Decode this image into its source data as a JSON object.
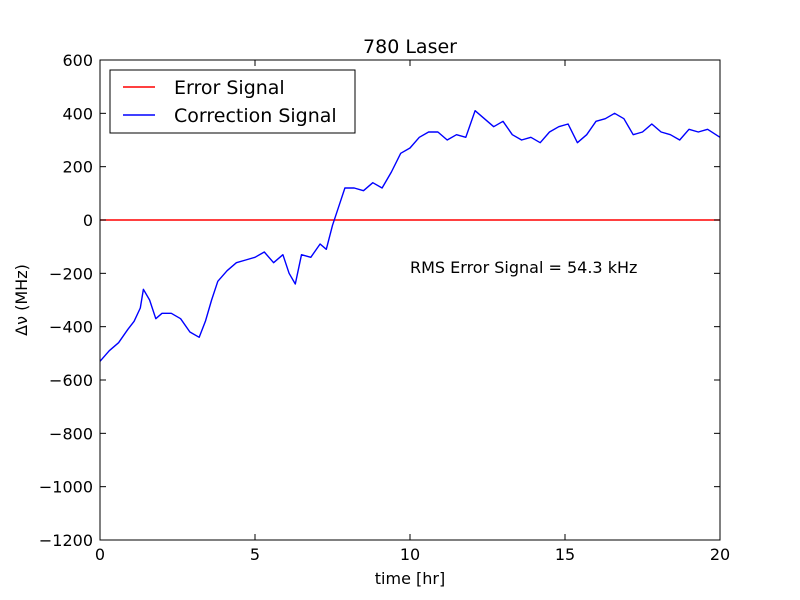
{
  "chart_data": {
    "type": "line",
    "title": "780 Laser",
    "xlabel": "time [hr]",
    "ylabel": "Δν (MHz)",
    "xlim": [
      0,
      20
    ],
    "ylim": [
      -1200,
      600
    ],
    "xticks": [
      0,
      5,
      10,
      15,
      20
    ],
    "xtick_labels": [
      "0",
      "5",
      "10",
      "15",
      "20"
    ],
    "yticks": [
      600,
      400,
      200,
      0,
      -200,
      -400,
      -600,
      -800,
      -1000,
      -1200
    ],
    "ytick_labels": [
      "600",
      "400",
      "200",
      "0",
      "−200",
      "−400",
      "−600",
      "−800",
      "−1000",
      "−1200"
    ],
    "grid": false,
    "legend": "top-left",
    "annotation": "RMS Error Signal = 54.3 kHz",
    "series": [
      {
        "name": "Error Signal",
        "color": "#ff0000",
        "x": [
          0,
          20
        ],
        "y": [
          0,
          0
        ]
      },
      {
        "name": "Correction Signal",
        "color": "#0000ff",
        "x": [
          0,
          0.3,
          0.6,
          0.9,
          1.1,
          1.3,
          1.4,
          1.6,
          1.8,
          2.0,
          2.3,
          2.6,
          2.9,
          3.2,
          3.4,
          3.6,
          3.8,
          4.1,
          4.4,
          4.7,
          5.0,
          5.3,
          5.6,
          5.9,
          6.1,
          6.3,
          6.5,
          6.8,
          7.1,
          7.3,
          7.5,
          7.7,
          7.9,
          8.2,
          8.5,
          8.8,
          9.1,
          9.4,
          9.7,
          10.0,
          10.3,
          10.6,
          10.9,
          11.2,
          11.5,
          11.8,
          12.1,
          12.4,
          12.7,
          13.0,
          13.3,
          13.6,
          13.9,
          14.2,
          14.5,
          14.8,
          15.1,
          15.4,
          15.7,
          16.0,
          16.3,
          16.6,
          16.9,
          17.2,
          17.5,
          17.8,
          18.1,
          18.4,
          18.7,
          19.0,
          19.3,
          19.6,
          20.0
        ],
        "y": [
          -530,
          -490,
          -460,
          -410,
          -380,
          -330,
          -260,
          -300,
          -370,
          -350,
          -350,
          -370,
          -420,
          -440,
          -380,
          -300,
          -230,
          -190,
          -160,
          -150,
          -140,
          -120,
          -160,
          -130,
          -200,
          -240,
          -130,
          -140,
          -90,
          -110,
          -20,
          50,
          120,
          120,
          110,
          140,
          120,
          180,
          250,
          270,
          310,
          330,
          330,
          300,
          320,
          310,
          410,
          380,
          350,
          370,
          320,
          300,
          310,
          290,
          330,
          350,
          360,
          290,
          320,
          370,
          380,
          400,
          380,
          320,
          330,
          360,
          330,
          320,
          300,
          340,
          330,
          340,
          310
        ]
      }
    ]
  }
}
